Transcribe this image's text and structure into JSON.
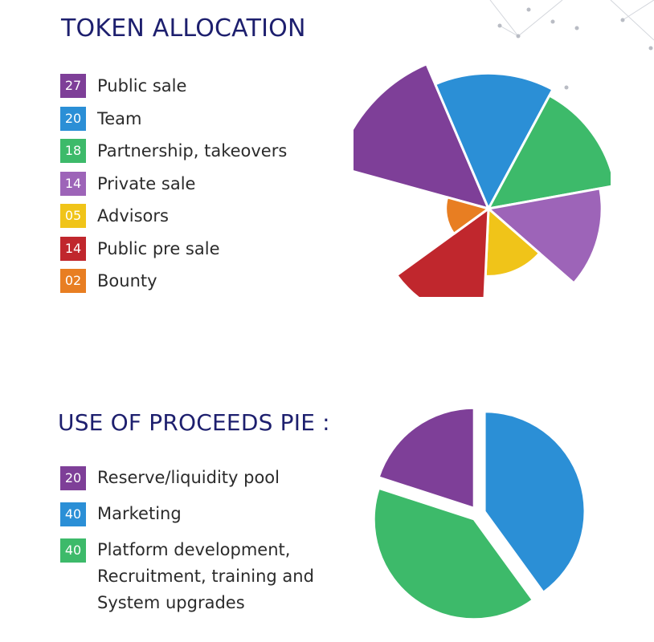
{
  "colors": {
    "title": "#1d1f6e",
    "text": "#2b2b2b",
    "purple": "#7e3f98",
    "blue": "#2b8fd6",
    "green": "#3dba6a",
    "lavender": "#9d64b8",
    "yellow": "#f0c419",
    "red": "#c0272d",
    "orange": "#e87e22",
    "decoration": "#c9ccd3"
  },
  "token_allocation": {
    "title": "TOKEN ALLOCATION",
    "items": [
      {
        "value_label": "27",
        "label": "Public sale",
        "color": "#7e3f98"
      },
      {
        "value_label": "20",
        "label": "Team",
        "color": "#2b8fd6"
      },
      {
        "value_label": "18",
        "label": "Partnership, takeovers",
        "color": "#3dba6a"
      },
      {
        "value_label": "14",
        "label": "Private sale",
        "color": "#9d64b8"
      },
      {
        "value_label": "05",
        "label": "Advisors",
        "color": "#f0c419"
      },
      {
        "value_label": "14",
        "label": "Public pre sale",
        "color": "#c0272d"
      },
      {
        "value_label": "02",
        "label": "Bounty",
        "color": "#e87e22"
      }
    ]
  },
  "use_of_proceeds": {
    "title": "USE OF PROCEEDS PIE :",
    "items": [
      {
        "value_label": "20",
        "label": "Reserve/liquidity pool",
        "color": "#7e3f98"
      },
      {
        "value_label": "40",
        "label": "Marketing",
        "color": "#2b8fd6"
      },
      {
        "value_label": "40",
        "label": "Platform development, Recruitment, training and System upgrades",
        "color": "#3dba6a"
      }
    ]
  },
  "chart_data": [
    {
      "type": "pie",
      "variant": "polar-area",
      "title": "TOKEN ALLOCATION",
      "categories": [
        "Public sale",
        "Team",
        "Partnership, takeovers",
        "Private sale",
        "Advisors",
        "Public pre sale",
        "Bounty"
      ],
      "values": [
        27,
        20,
        18,
        14,
        5,
        14,
        2
      ],
      "colors": [
        "#7e3f98",
        "#2b8fd6",
        "#3dba6a",
        "#9d64b8",
        "#f0c419",
        "#c0272d",
        "#e87e22"
      ],
      "legend": "left"
    },
    {
      "type": "pie",
      "variant": "exploded",
      "title": "USE OF PROCEEDS PIE :",
      "categories": [
        "Reserve/liquidity pool",
        "Marketing",
        "Platform development, Recruitment, training and System upgrades"
      ],
      "values": [
        20,
        40,
        40
      ],
      "colors": [
        "#7e3f98",
        "#2b8fd6",
        "#3dba6a"
      ],
      "legend": "left"
    }
  ]
}
